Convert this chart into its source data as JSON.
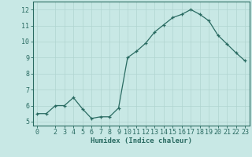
{
  "x": [
    0,
    1,
    2,
    3,
    4,
    5,
    6,
    7,
    8,
    9,
    10,
    11,
    12,
    13,
    14,
    15,
    16,
    17,
    18,
    19,
    20,
    21,
    22,
    23
  ],
  "y": [
    5.5,
    5.5,
    6.0,
    6.0,
    6.5,
    5.8,
    5.2,
    5.3,
    5.3,
    5.85,
    9.0,
    9.4,
    9.9,
    10.6,
    11.05,
    11.5,
    11.7,
    12.0,
    11.7,
    11.3,
    10.4,
    9.85,
    9.3,
    8.8
  ],
  "bg_color": "#c8e8e5",
  "line_color": "#2a6b62",
  "marker_color": "#2a6b62",
  "grid_major_color": "#b0d4d0",
  "grid_minor_color": "#d0e8e5",
  "xlabel": "Humidex (Indice chaleur)",
  "ylim": [
    4.75,
    12.5
  ],
  "xlim": [
    -0.5,
    23.5
  ],
  "yticks": [
    5,
    6,
    7,
    8,
    9,
    10,
    11,
    12
  ],
  "xticks": [
    0,
    2,
    3,
    4,
    5,
    6,
    7,
    8,
    9,
    10,
    11,
    12,
    13,
    14,
    15,
    16,
    17,
    18,
    19,
    20,
    21,
    22,
    23
  ],
  "axis_color": "#2a6b62",
  "tick_color": "#2a6b62",
  "label_fontsize": 6.5,
  "tick_fontsize": 6.0
}
